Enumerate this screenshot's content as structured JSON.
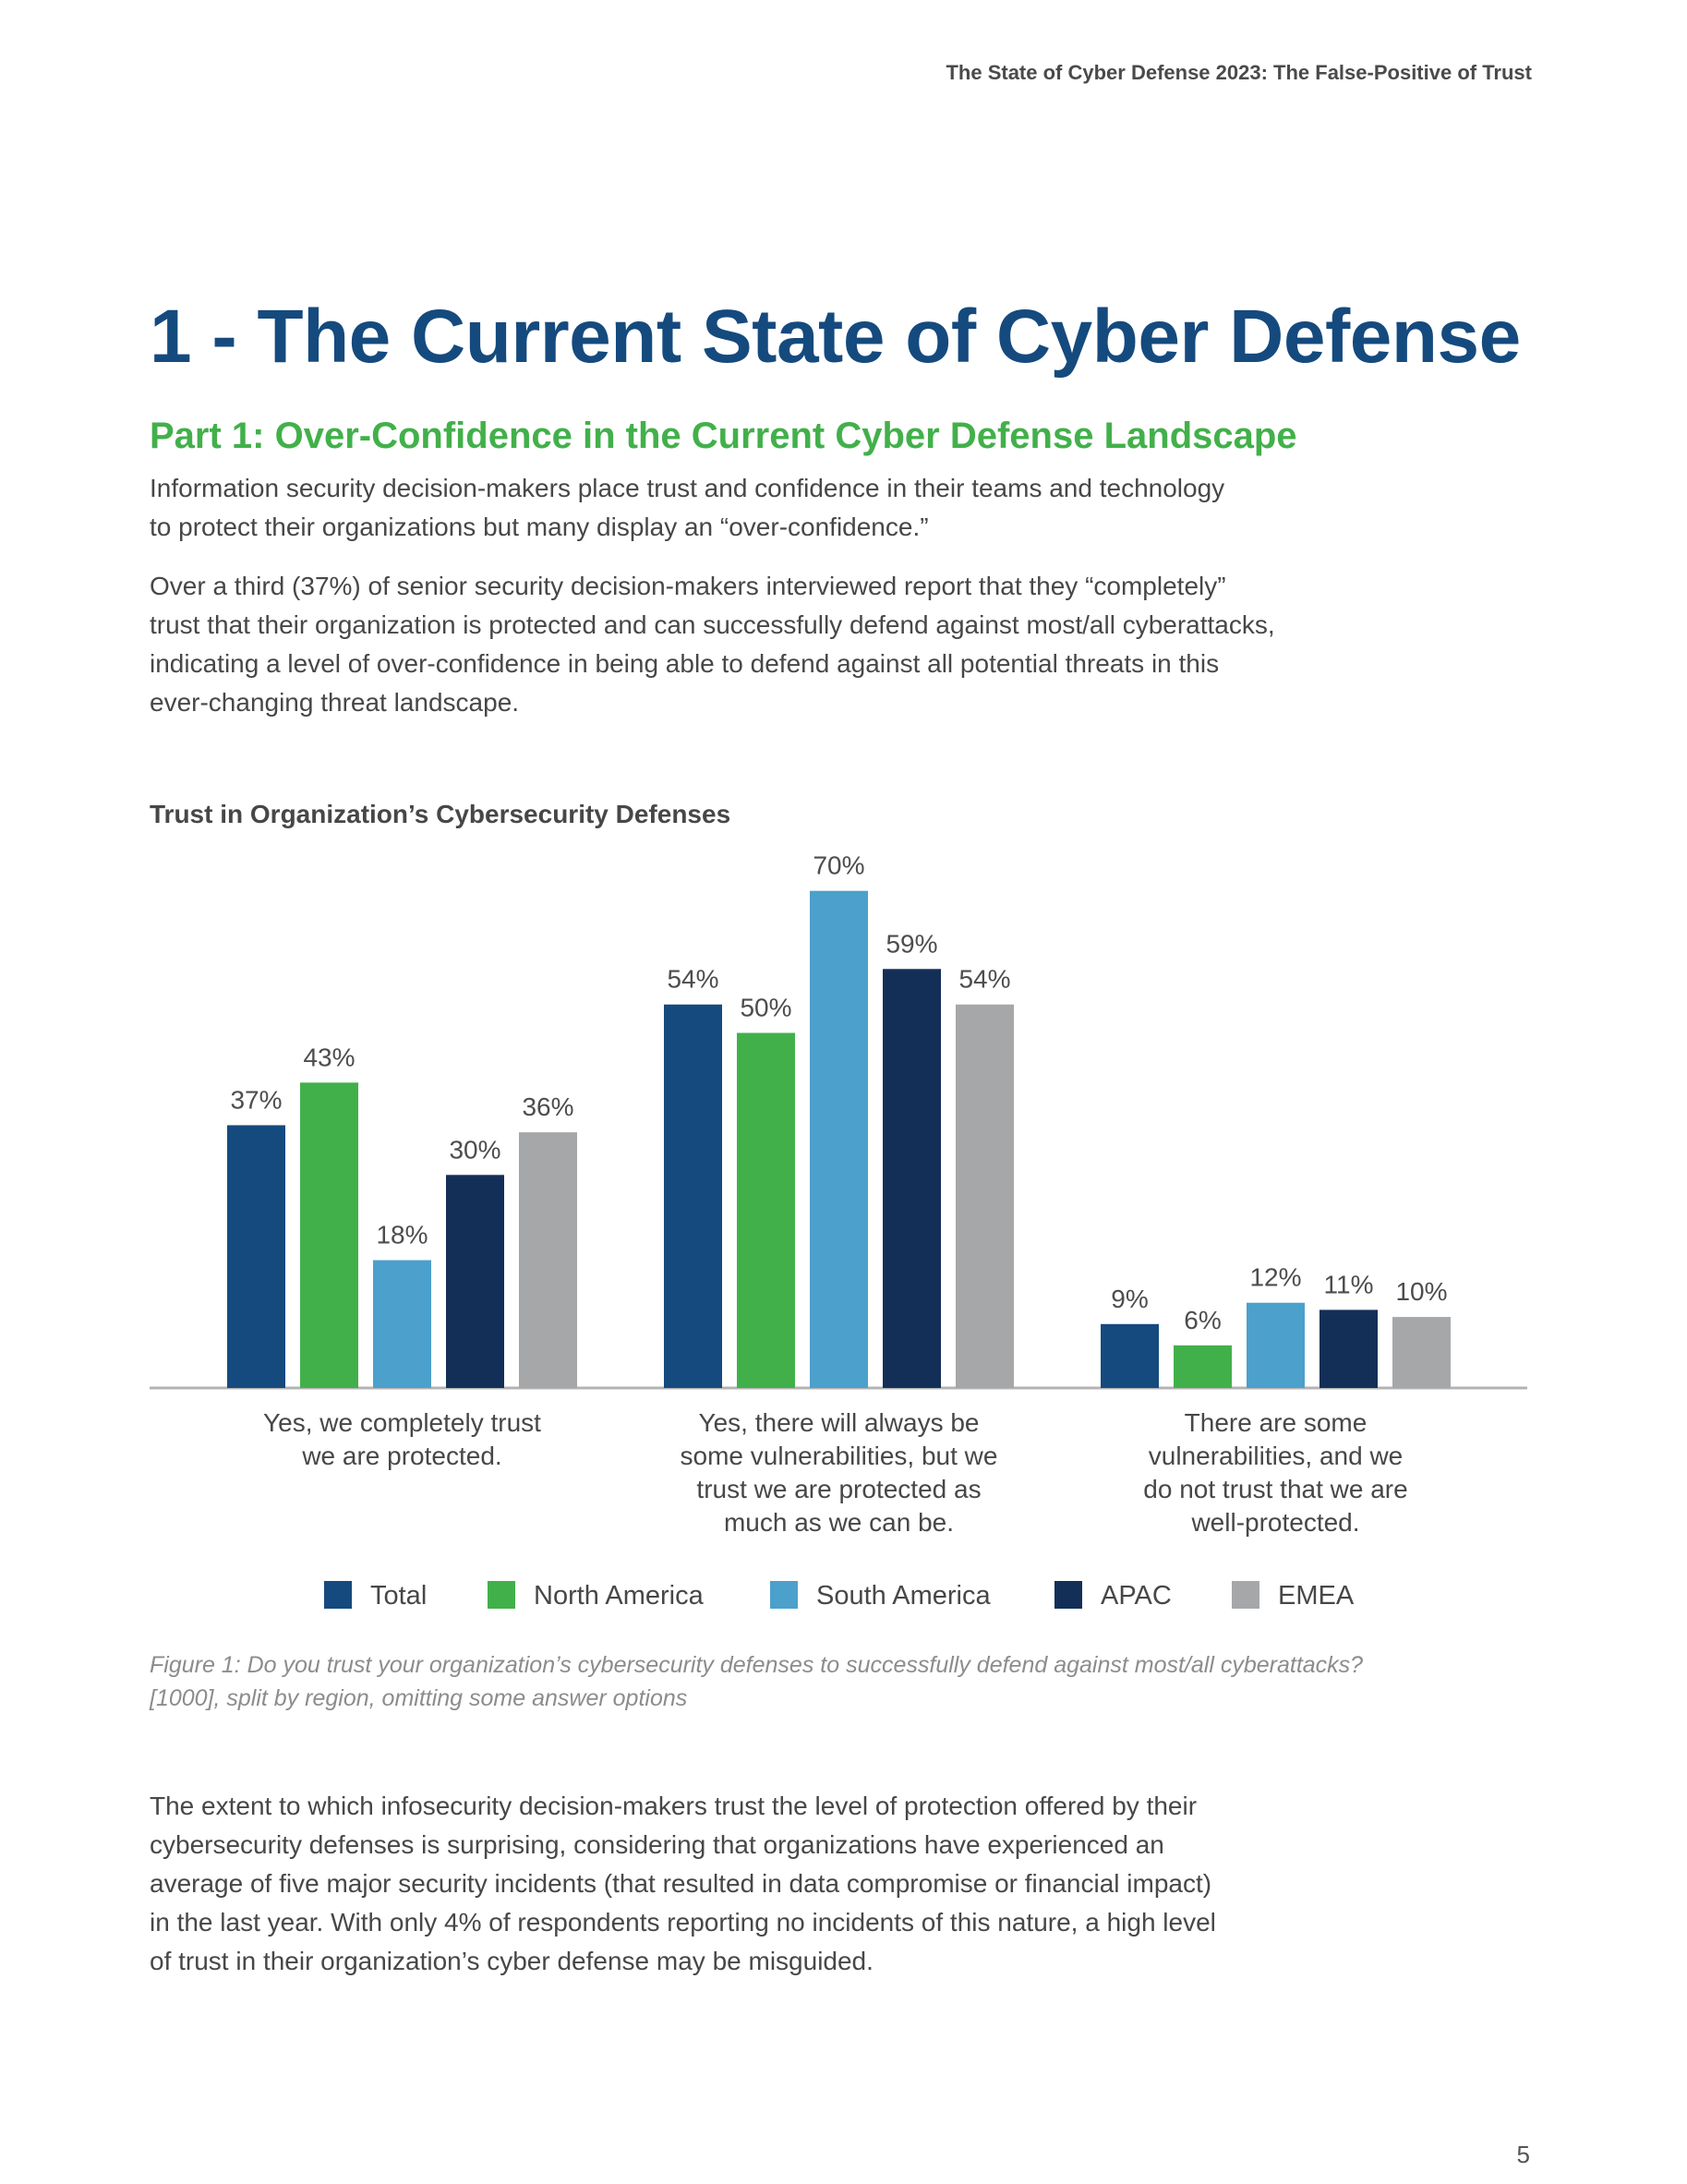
{
  "header": {
    "running_title": "The State of Cyber Defense 2023: The False-Positive of Trust"
  },
  "section": {
    "title": "1 - The Current State of Cyber Defense",
    "subtitle": "Part 1: Over-Confidence in the Current Cyber Defense Landscape"
  },
  "intro": {
    "lines": [
      "Information security decision-makers place trust and confidence in their teams and technology",
      "to protect their organizations but many display an “over-confidence.”"
    ]
  },
  "para2": {
    "lines": [
      "Over a third (37%) of senior security decision-makers interviewed report that they “completely”",
      "trust that their organization is protected and can successfully defend against most/all cyberattacks,",
      "indicating a level of over-confidence in being able to defend against all potential threats in this",
      "ever-changing threat landscape."
    ]
  },
  "chart_data": {
    "type": "bar",
    "title": "Trust in Organization’s Cybersecurity Defenses",
    "categories": [
      [
        "Yes, we completely trust",
        "we are protected."
      ],
      [
        "Yes, there will always be",
        "some vulnerabilities, but we",
        "trust we are protected as",
        "much as we can be."
      ],
      [
        "There are some",
        "vulnerabilities, and we",
        "do not trust that we are",
        "well-protected."
      ]
    ],
    "series": [
      {
        "name": "Total",
        "color": "#154a7e",
        "values": [
          37,
          54,
          9
        ]
      },
      {
        "name": "North America",
        "color": "#42b04a",
        "values": [
          43,
          50,
          6
        ]
      },
      {
        "name": "South America",
        "color": "#4ca0cc",
        "values": [
          18,
          70,
          12
        ]
      },
      {
        "name": "APAC",
        "color": "#142f57",
        "values": [
          30,
          59,
          11
        ]
      },
      {
        "name": "EMEA",
        "color": "#a6a7a9",
        "values": [
          36,
          54,
          10
        ]
      }
    ],
    "value_suffix": "%",
    "legend_position": "bottom",
    "grid": false
  },
  "caption": {
    "lines": [
      "Figure 1: Do you trust your organization’s cybersecurity defenses to successfully defend against most/all cyberattacks?",
      "[1000], split by region, omitting some answer options"
    ]
  },
  "closing": {
    "lines": [
      "The extent to which infosecurity decision-makers trust the level of protection offered by their",
      "cybersecurity defenses is surprising, considering that organizations have experienced an",
      "average of five major security incidents (that resulted in data compromise or financial impact)",
      "in the last year. With only 4% of respondents reporting no incidents of this nature, a high level",
      "of trust in their organization’s cyber defense may be misguided."
    ]
  },
  "footer": {
    "page_number": "5"
  }
}
